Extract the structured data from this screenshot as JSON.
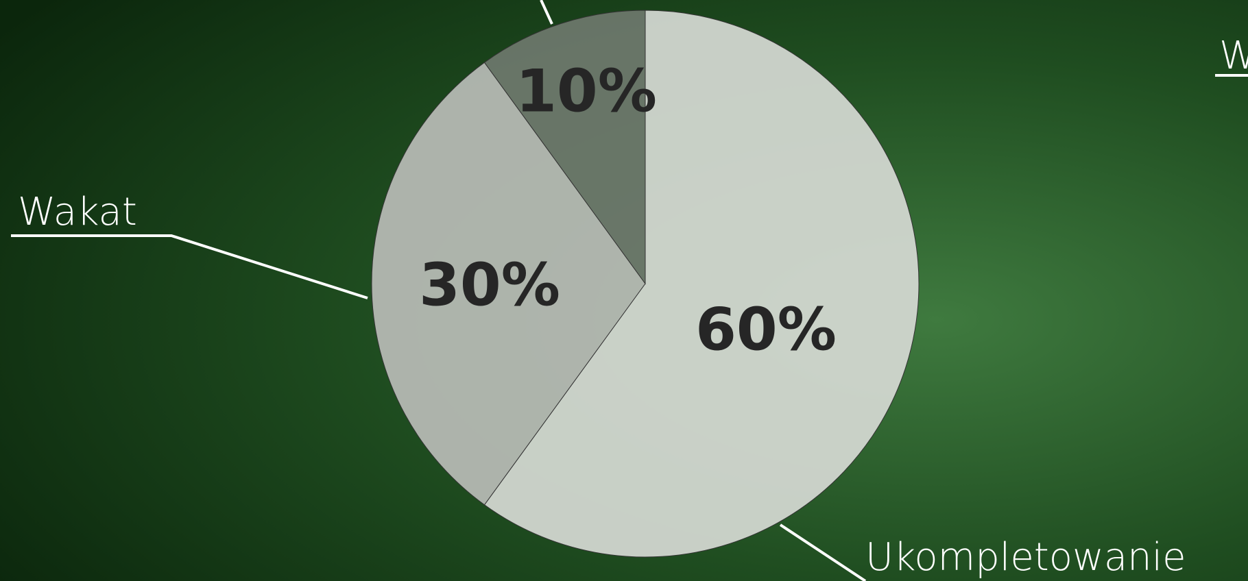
{
  "chart_data": {
    "type": "pie",
    "categories": [
      "Ukompletowanie",
      "Wakat",
      null
    ],
    "values": [
      60,
      30,
      10
    ],
    "value_labels": [
      "60%",
      "30%",
      "10%"
    ],
    "colors": [
      "#d5d9d3",
      "#b8bbb6",
      "#6e786d"
    ],
    "annotations": [
      "W"
    ]
  }
}
